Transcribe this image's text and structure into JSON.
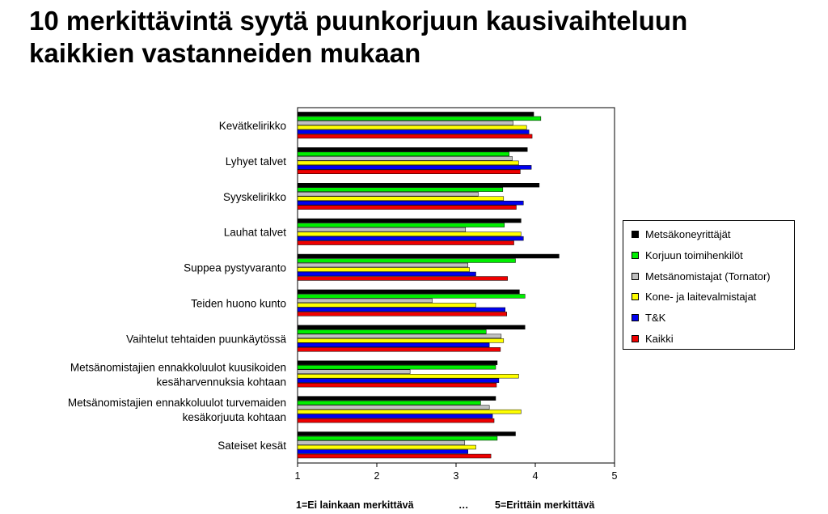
{
  "title_line1": "10 merkittävintä syytä puunkorjuun kausivaihteluun",
  "title_line2": "kaikkien vastanneiden mukaan",
  "footer": {
    "left": "1=Ei lainkaan merkittävä",
    "middle": "…",
    "right": "5=Erittäin merkittävä"
  },
  "chart_data": {
    "type": "bar",
    "orientation": "horizontal",
    "xlim": [
      1,
      5
    ],
    "x_ticks": [
      "1",
      "2",
      "3",
      "4",
      "5"
    ],
    "legend_position": "right",
    "categories": [
      [
        "Kevätkelirikko"
      ],
      [
        "Lyhyet talvet"
      ],
      [
        "Syyskelirikko"
      ],
      [
        "Lauhat talvet"
      ],
      [
        "Suppea pystyvaranto"
      ],
      [
        "Teiden huono kunto"
      ],
      [
        "Vaihtelut tehtaiden puunkäytössä"
      ],
      [
        "Metsänomistajien ennakkoluulot kuusikoiden",
        "kesäharvennuksia kohtaan"
      ],
      [
        "Metsänomistajien ennakkoluulot turvemaiden",
        "kesäkorjuuta kohtaan"
      ],
      [
        "Sateiset kesät"
      ]
    ],
    "series": [
      {
        "name": "Metsäkoneyrittäjät",
        "color": "#000000",
        "values": [
          3.98,
          3.9,
          4.05,
          3.82,
          4.3,
          3.8,
          3.87,
          3.52,
          3.5,
          3.75
        ]
      },
      {
        "name": "Korjuun toimihenkilöt",
        "color": "#00ee00",
        "values": [
          4.07,
          3.67,
          3.59,
          3.61,
          3.75,
          3.87,
          3.38,
          3.5,
          3.31,
          3.52
        ]
      },
      {
        "name": "Metsänomistajat (Tornator)",
        "color": "#c0c0c0",
        "values": [
          3.72,
          3.71,
          3.28,
          3.12,
          3.15,
          2.7,
          3.57,
          2.42,
          3.42,
          3.11
        ]
      },
      {
        "name": "Kone- ja laitevalmistajat",
        "color": "#ffff00",
        "values": [
          3.89,
          3.79,
          3.6,
          3.82,
          3.17,
          3.25,
          3.6,
          3.79,
          3.82,
          3.25
        ]
      },
      {
        "name": "T&K",
        "color": "#0000ee",
        "values": [
          3.92,
          3.95,
          3.85,
          3.85,
          3.25,
          3.62,
          3.42,
          3.54,
          3.46,
          3.15
        ]
      },
      {
        "name": "Kaikki",
        "color": "#ee0000",
        "values": [
          3.96,
          3.81,
          3.76,
          3.73,
          3.65,
          3.64,
          3.56,
          3.51,
          3.48,
          3.44
        ]
      }
    ]
  }
}
